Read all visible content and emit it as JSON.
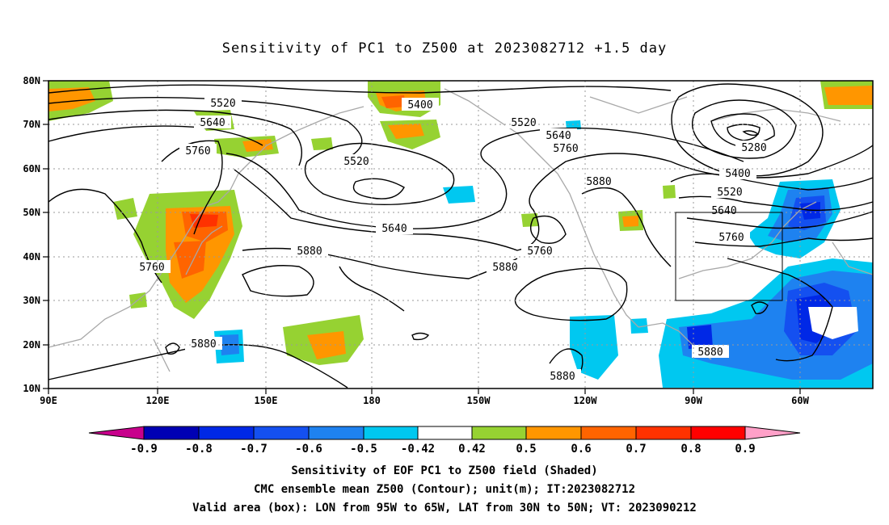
{
  "title": "Sensitivity of PC1 to Z500 at 2023082712 +1.5 day",
  "lat_labels": [
    "80N",
    "70N",
    "60N",
    "50N",
    "40N",
    "30N",
    "20N",
    "10N"
  ],
  "lon_labels": [
    "90E",
    "120E",
    "150E",
    "180",
    "150W",
    "120W",
    "90W",
    "60W"
  ],
  "contour_labels": [
    "5520",
    "5640",
    "5760",
    "5400",
    "5520",
    "5520",
    "5640",
    "5760",
    "5880",
    "5280",
    "5400",
    "5520",
    "5640",
    "5760",
    "5640",
    "5880",
    "5760",
    "5880",
    "5760",
    "5880",
    "5880",
    "5880"
  ],
  "colorbar": {
    "labels": [
      "-0.9",
      "-0.8",
      "-0.7",
      "-0.6",
      "-0.5",
      "-0.42",
      "0.42",
      "0.5",
      "0.6",
      "0.7",
      "0.8",
      "0.9"
    ],
    "colors": [
      "#c8008c",
      "#0000b4",
      "#0028e6",
      "#1450f0",
      "#1e82f0",
      "#00c8f0",
      "#ffffff",
      "#96d232",
      "#ff9600",
      "#ff6400",
      "#ff3200",
      "#ff0000",
      "#ffa0c8"
    ]
  },
  "captions": [
    "Sensitivity of EOF PC1 to Z500 field (Shaded)",
    "CMC ensemble mean Z500 (Contour); unit(m); IT:2023082712",
    "Valid area (box): LON from 95W to 65W, LAT from 30N to 50N; VT: 2023090212"
  ]
}
